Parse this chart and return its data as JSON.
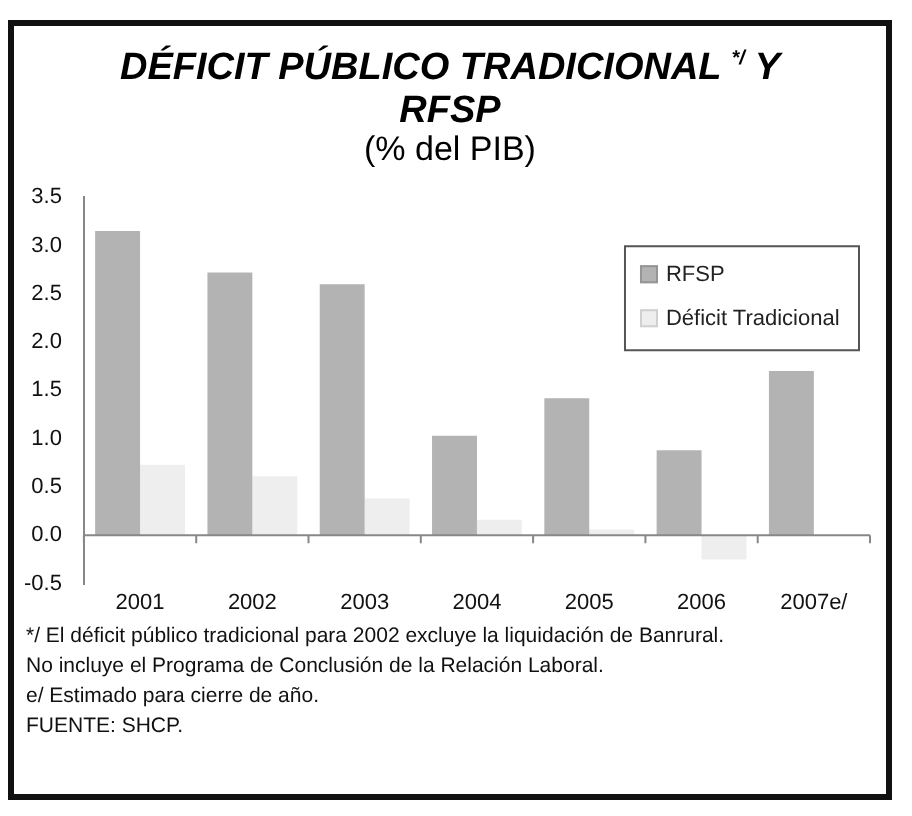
{
  "chart_data": {
    "type": "bar",
    "title": "DÉFICIT PÚBLICO TRADICIONAL $^{*/}$ Y RFSP",
    "subtitle": "(% del PIB)",
    "categories": [
      "2001",
      "2002",
      "2003",
      "2004",
      "2005",
      "2006",
      "2007e/"
    ],
    "series": [
      {
        "name": "RFSP",
        "color": "#b3b3b3",
        "values": [
          3.15,
          2.72,
          2.6,
          1.03,
          1.42,
          0.88,
          1.7
        ]
      },
      {
        "name": "Déficit Tradicional",
        "color": "#eeeeee",
        "values": [
          0.73,
          0.61,
          0.38,
          0.16,
          0.06,
          -0.25,
          null
        ]
      }
    ],
    "ylim": [
      -0.5,
      3.5
    ],
    "yticks": [
      {
        "value": -0.5,
        "label": "-0.5"
      },
      {
        "value": 0,
        "label": "0.0"
      },
      {
        "value": 0.5,
        "label": "0.5"
      },
      {
        "value": 1,
        "label": "1.0"
      },
      {
        "value": 1.5,
        "label": "1.5"
      },
      {
        "value": 2,
        "label": "2.0"
      },
      {
        "value": 2.5,
        "label": "2.5"
      },
      {
        "value": 3,
        "label": "3.0"
      },
      3.5
    ],
    "grid": false,
    "legend": "top right",
    "annotations": [
      "*/ El déficit público tradicional para 2002 excluye la liquidación de Banrural.",
      "No incluye el Programa de Conclusión de la Relación Laboral.",
      "e/ Estimado para cierre de año.",
      "FUENTE: SHCP."
    ]
  }
}
